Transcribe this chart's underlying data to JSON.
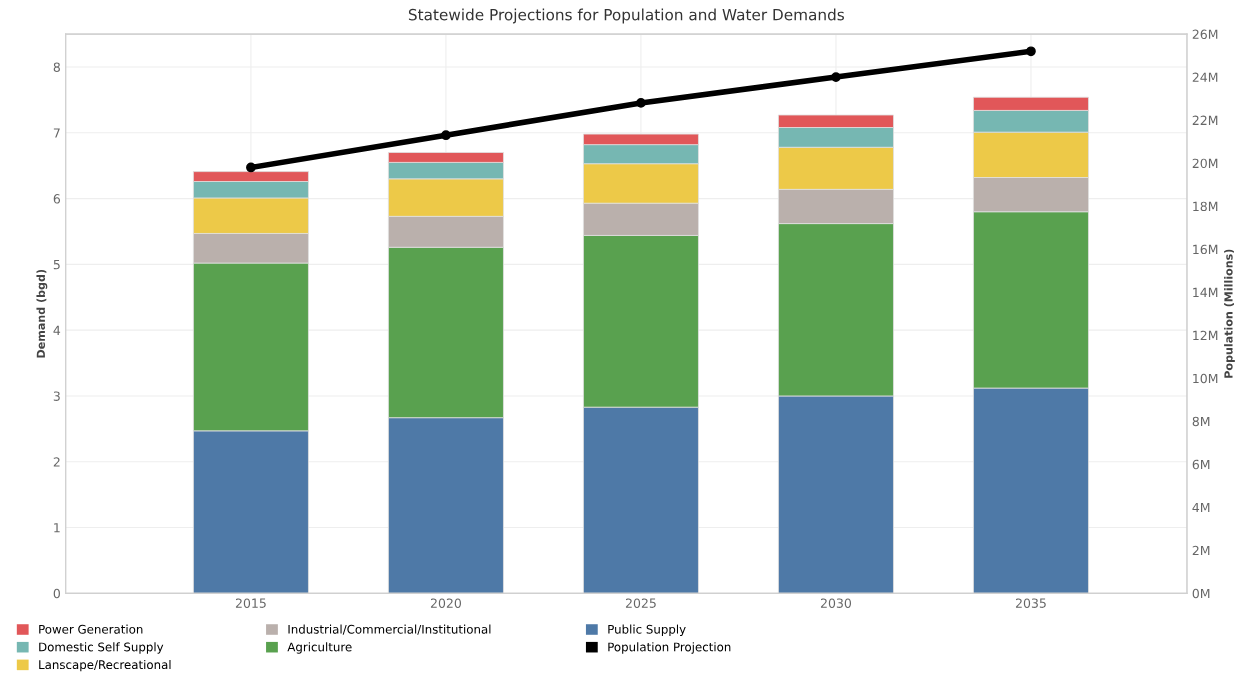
{
  "chart_data": {
    "type": "bar",
    "title": "Statewide Projections for Population and Water Demands",
    "ylabel": "Demand (bgd)",
    "y2label": "Population (Millions)",
    "categories": [
      "2015",
      "2020",
      "2025",
      "2030",
      "2035"
    ],
    "stacked": true,
    "series": [
      {
        "name": "Public Supply",
        "color": "#4e79a7",
        "values": [
          2.47,
          2.67,
          2.83,
          3.0,
          3.12
        ]
      },
      {
        "name": "Agriculture",
        "color": "#59a14f",
        "values": [
          2.55,
          2.59,
          2.61,
          2.62,
          2.68
        ]
      },
      {
        "name": "Industrial/Commercial/Institutional",
        "color": "#bab0ac",
        "values": [
          0.45,
          0.47,
          0.49,
          0.52,
          0.52
        ]
      },
      {
        "name": "Lanscape/Recreational",
        "color": "#edc948",
        "values": [
          0.54,
          0.57,
          0.6,
          0.64,
          0.69
        ]
      },
      {
        "name": "Domestic Self Supply",
        "color": "#76b7b2",
        "values": [
          0.25,
          0.25,
          0.29,
          0.3,
          0.33
        ]
      },
      {
        "name": "Power Generation",
        "color": "#e15759",
        "values": [
          0.15,
          0.15,
          0.16,
          0.19,
          0.2
        ]
      },
      {
        "name": "Population Projection",
        "color": "#000000",
        "type": "line",
        "axis": "y2",
        "marker": "circle",
        "values": [
          19.8,
          21.3,
          22.8,
          24.0,
          25.2
        ]
      }
    ],
    "ylim": [
      0,
      8.5
    ],
    "yticks": [
      0,
      1,
      2,
      3,
      4,
      5,
      6,
      7,
      8
    ],
    "y2lim": [
      0,
      26
    ],
    "y2ticks": [
      {
        "value": 0,
        "label": "0M"
      },
      {
        "value": 2,
        "label": "2M"
      },
      {
        "value": 4,
        "label": "4M"
      },
      {
        "value": 6,
        "label": "6M"
      },
      {
        "value": 8,
        "label": "8M"
      },
      {
        "value": 10,
        "label": "10M"
      },
      {
        "value": 12,
        "label": "12M"
      },
      {
        "value": 14,
        "label": "14M"
      },
      {
        "value": 16,
        "label": "16M"
      },
      {
        "value": 18,
        "label": "18M"
      },
      {
        "value": 20,
        "label": "20M"
      },
      {
        "value": 22,
        "label": "22M"
      },
      {
        "value": 24,
        "label": "24M"
      },
      {
        "value": 26,
        "label": "26M"
      }
    ],
    "grid": true,
    "legend": "bottom left"
  }
}
